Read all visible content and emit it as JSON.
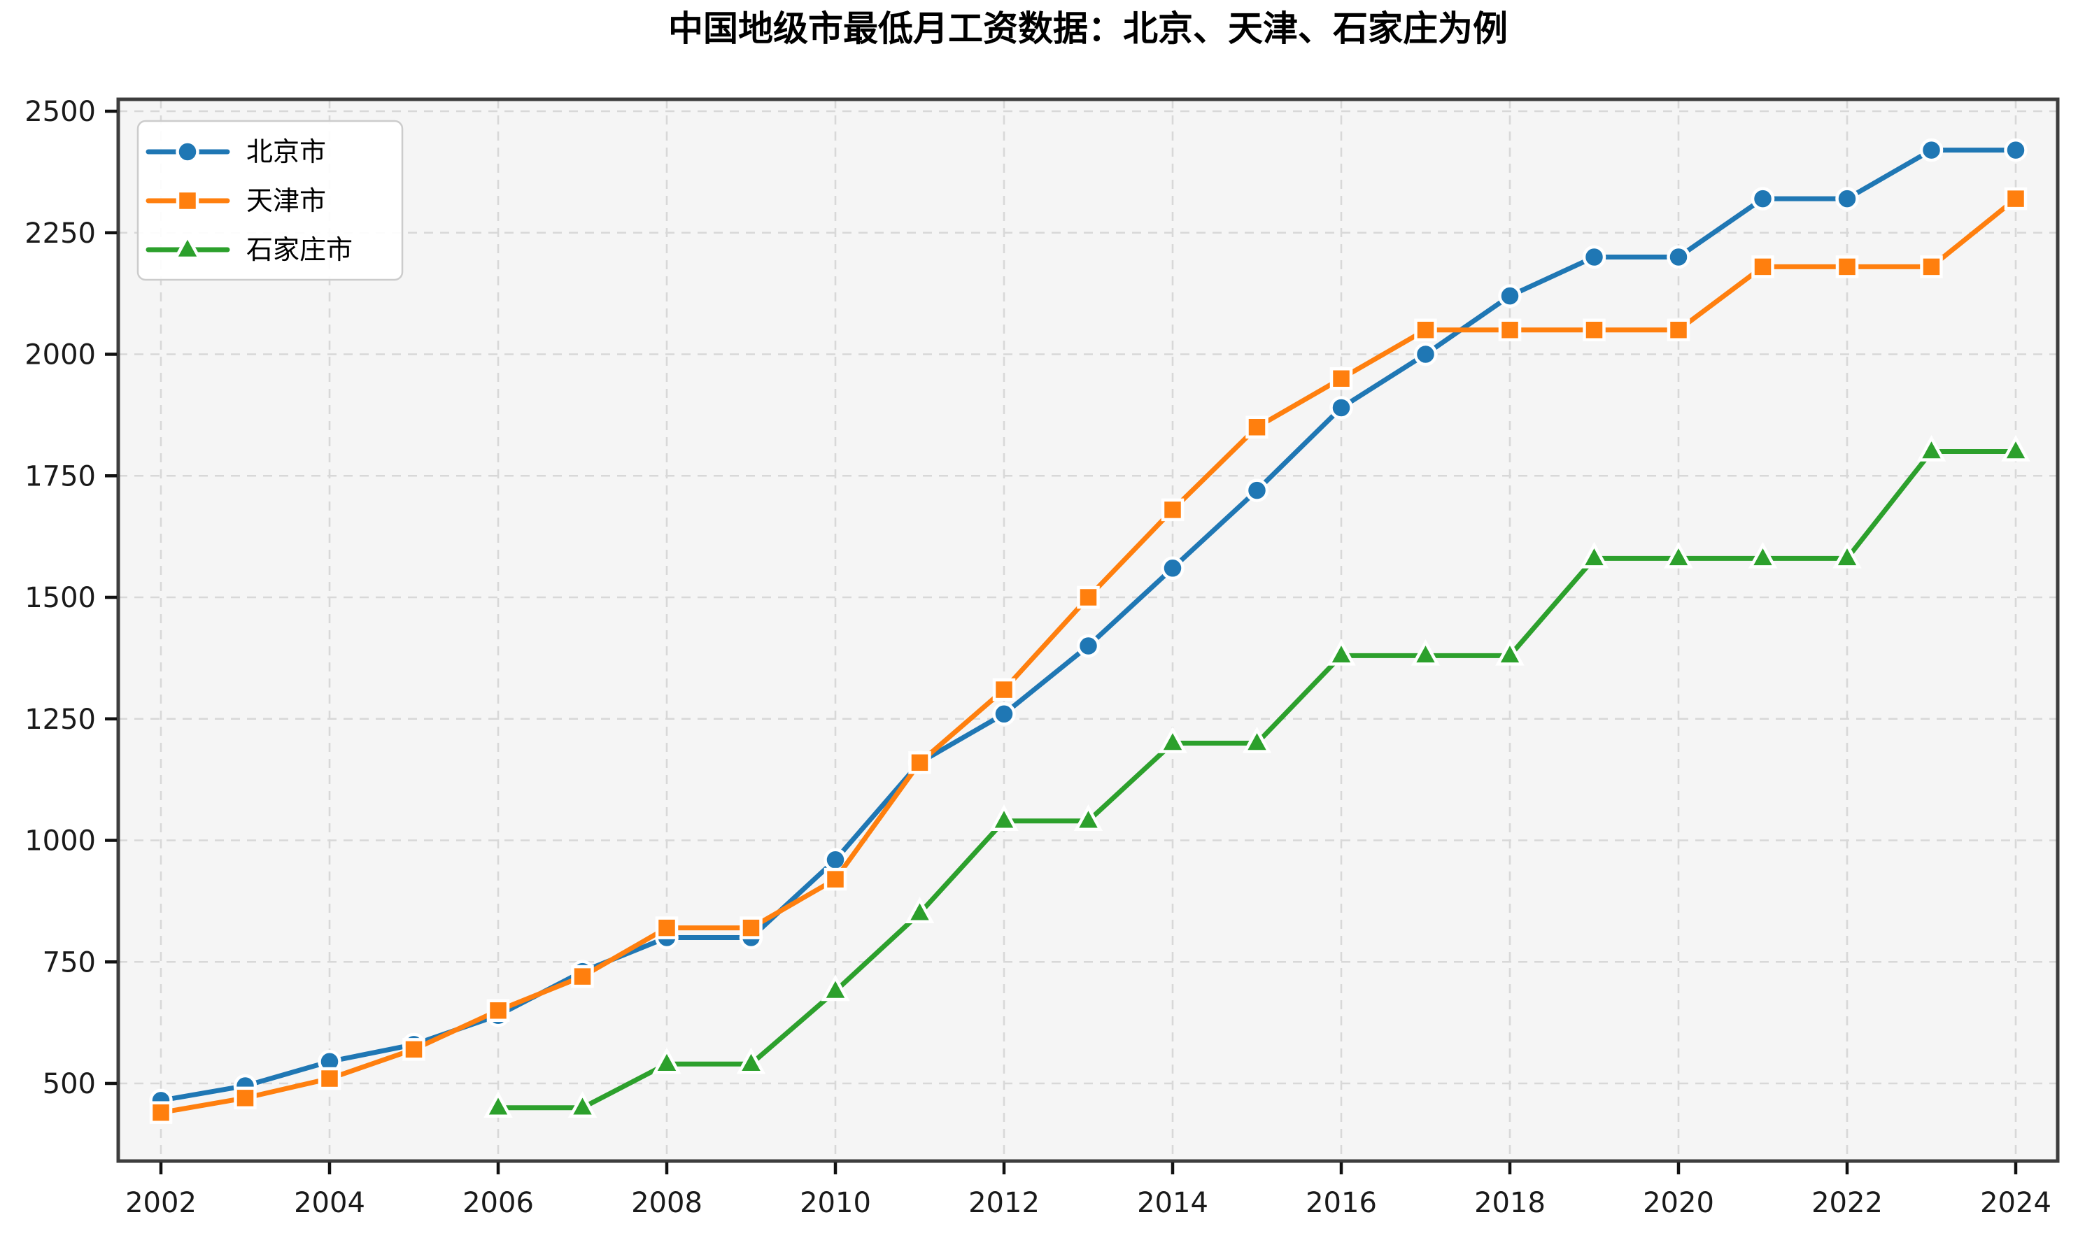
{
  "title": "中国地级市最低月工资数据：北京、天津、石家庄为例",
  "colors": {
    "background": "#ffffff",
    "plot_background": "#f5f5f5",
    "grid": "#d8d8d8",
    "spine": "#3d3d3d",
    "tick": "#111111",
    "tick_label": "#1a1a1a",
    "legend_background": "#ffffff",
    "legend_border": "#cccccc",
    "beijing": "#1f77b4",
    "tianjin": "#ff7f0e",
    "shijiazhuang": "#2ca02c"
  },
  "legend": {
    "items": [
      "北京市",
      "天津市",
      "石家庄市"
    ]
  },
  "chart_data": {
    "type": "line",
    "title": "中国地级市最低月工资数据：北京、天津、石家庄为例",
    "xlabel": "",
    "ylabel": "",
    "grid": true,
    "legend_position": "upper left",
    "x": [
      2002,
      2003,
      2004,
      2005,
      2006,
      2007,
      2008,
      2009,
      2010,
      2011,
      2012,
      2013,
      2014,
      2015,
      2016,
      2017,
      2018,
      2019,
      2020,
      2021,
      2022,
      2023,
      2024
    ],
    "x_ticks": [
      2002,
      2004,
      2006,
      2008,
      2010,
      2012,
      2014,
      2016,
      2018,
      2020,
      2022,
      2024
    ],
    "y_ticks": [
      500,
      750,
      1000,
      1250,
      1500,
      1750,
      2000,
      2250,
      2500
    ],
    "xlim": [
      2001.49,
      2024.5
    ],
    "ylim": [
      340,
      2524
    ],
    "series": [
      {
        "name": "北京市",
        "key": "beijing",
        "color": "#1f77b4",
        "marker": "circle",
        "values": [
          465,
          495,
          545,
          580,
          640,
          730,
          800,
          800,
          960,
          1160,
          1260,
          1400,
          1560,
          1720,
          1890,
          2000,
          2120,
          2200,
          2200,
          2320,
          2320,
          2420,
          2420
        ]
      },
      {
        "name": "天津市",
        "key": "tianjin",
        "color": "#ff7f0e",
        "marker": "square",
        "values": [
          440,
          470,
          510,
          570,
          650,
          720,
          820,
          820,
          920,
          1160,
          1310,
          1500,
          1680,
          1850,
          1950,
          2050,
          2050,
          2050,
          2050,
          2180,
          2180,
          2180,
          2320
        ]
      },
      {
        "name": "石家庄市",
        "key": "shijiazhuang",
        "color": "#2ca02c",
        "marker": "triangle",
        "values": [
          null,
          null,
          null,
          null,
          450,
          450,
          540,
          540,
          690,
          850,
          1040,
          1040,
          1200,
          1200,
          1380,
          1380,
          1380,
          1580,
          1580,
          1580,
          1580,
          1800,
          1800
        ]
      }
    ]
  }
}
